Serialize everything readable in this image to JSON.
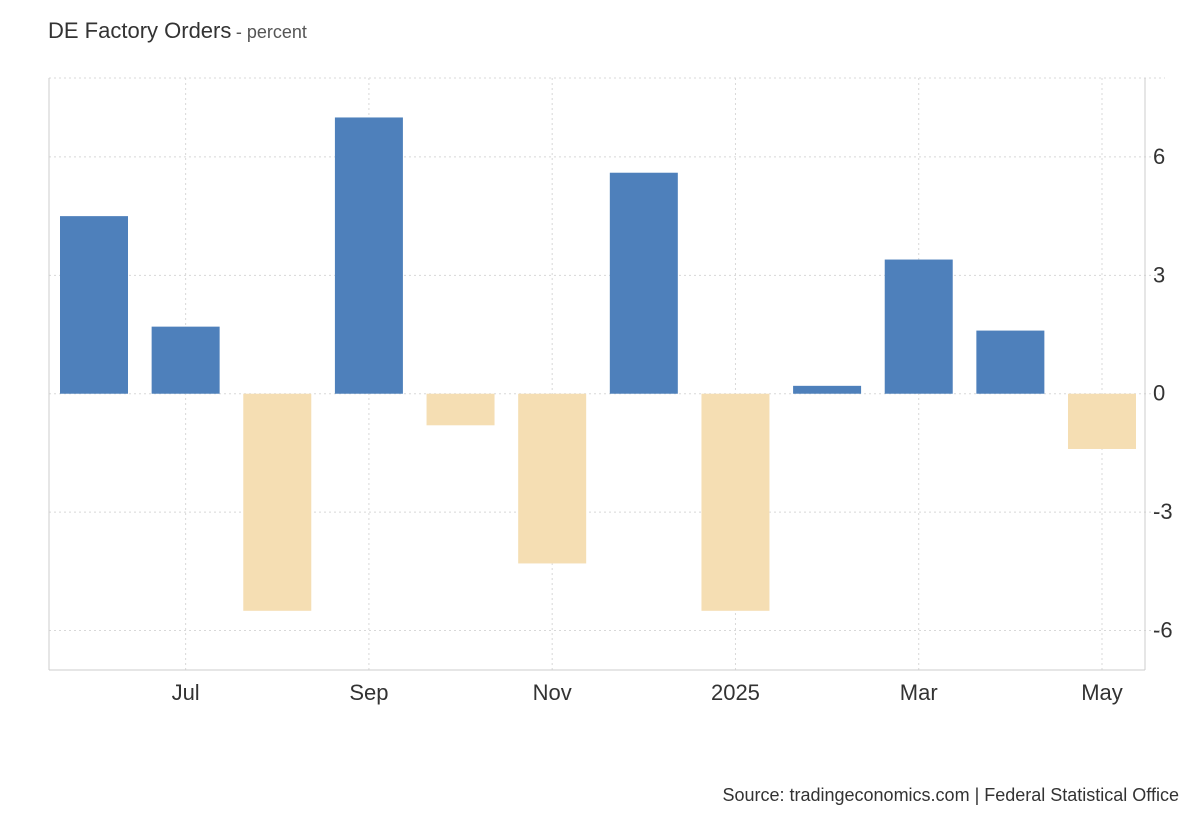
{
  "header": {
    "title": "DE Factory Orders",
    "subtitle": "- percent"
  },
  "footer": {
    "source": "Source: tradingeconomics.com | Federal Statistical Office"
  },
  "colors": {
    "positive": "#4e80bb",
    "negative": "#f5deb3",
    "grid": "#d8d8d8",
    "axis": "#cccccc"
  },
  "chart_data": {
    "type": "bar",
    "title": "DE Factory Orders",
    "subtitle": "percent",
    "categories": [
      "2024-06",
      "2024-07",
      "2024-08",
      "2024-09",
      "2024-10",
      "2024-11",
      "2024-12",
      "2025-01",
      "2025-02",
      "2025-03",
      "2025-04",
      "2025-05"
    ],
    "values": [
      4.5,
      1.7,
      -5.5,
      7.0,
      -0.8,
      -4.3,
      5.6,
      -5.5,
      0.2,
      3.4,
      1.6,
      -1.4
    ],
    "x_tick_labels": [
      {
        "category": "2024-07",
        "label": "Jul"
      },
      {
        "category": "2024-09",
        "label": "Sep"
      },
      {
        "category": "2024-11",
        "label": "Nov"
      },
      {
        "category": "2025-01",
        "label": "2025"
      },
      {
        "category": "2025-03",
        "label": "Mar"
      },
      {
        "category": "2025-05",
        "label": "May"
      }
    ],
    "y_ticks": [
      6,
      3,
      0,
      -3,
      -6
    ],
    "ylim": [
      -7.0,
      8.0
    ],
    "y_axis_side": "right",
    "grid": true,
    "legend": "none",
    "color_rule": "positive values blue, negative values wheat"
  }
}
